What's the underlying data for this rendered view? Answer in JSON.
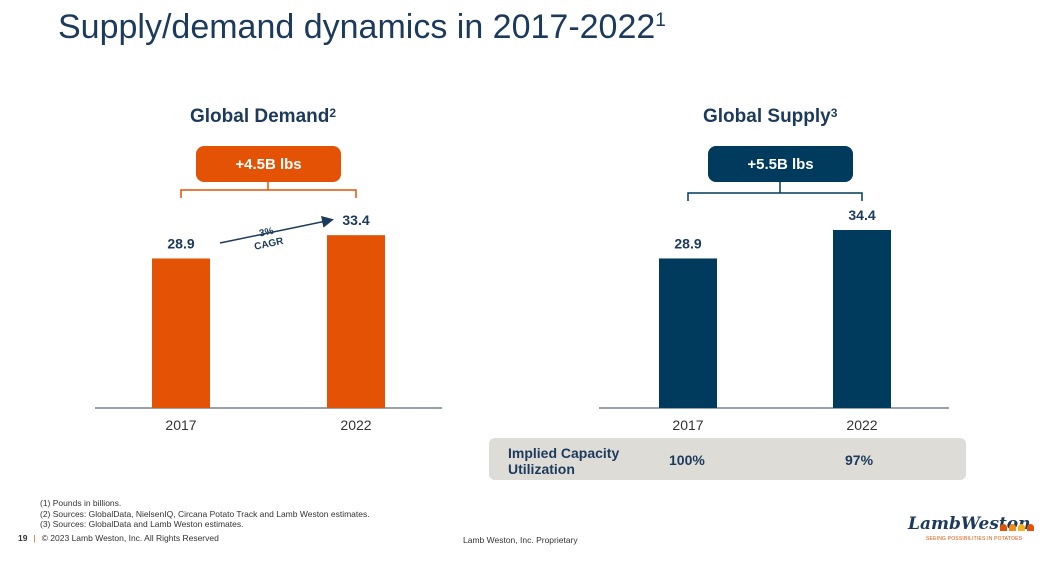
{
  "page": {
    "title": "Supply/demand dynamics in 2017-2022",
    "title_sup": "1",
    "page_number": "19",
    "copyright": "© 2023 Lamb Weston, Inc.  All Rights Reserved",
    "proprietary": "Lamb Weston, Inc. Proprietary"
  },
  "colors": {
    "demand": "#e35205",
    "supply": "#003a5c",
    "capacity_box": "#dedcd6"
  },
  "demand": {
    "title": "Global Demand",
    "title_sup": "2",
    "change": "+4.5B lbs",
    "cagr_label": "3% CAGR"
  },
  "supply": {
    "title": "Global Supply",
    "title_sup": "3",
    "change": "+5.5B lbs"
  },
  "capacity": {
    "label": "Implied Capacity Utilization",
    "values": [
      "100%",
      "97%"
    ]
  },
  "footnotes": [
    "(1) Pounds in billions.",
    "(2) Sources: GlobalData, NielsenIQ, Circana Potato Track and Lamb Weston estimates.",
    "(3) Sources: GlobalData and Lamb Weston estimates."
  ],
  "logo": {
    "name": "LambWeston",
    "tagline": "SEEING POSSIBILITIES IN POTATOES",
    "dot_colors": [
      "#e35205",
      "#f08a1c",
      "#f2b01e",
      "#e35205"
    ]
  },
  "chart_data": [
    {
      "type": "bar",
      "title": "Global Demand",
      "categories": [
        "2017",
        "2022"
      ],
      "values": [
        28.9,
        33.4
      ],
      "value_labels": [
        "28.9",
        "33.4"
      ],
      "ylim": [
        0,
        34.4
      ],
      "annotation": "3% CAGR"
    },
    {
      "type": "bar",
      "title": "Global Supply",
      "categories": [
        "2017",
        "2022"
      ],
      "values": [
        28.9,
        34.4
      ],
      "value_labels": [
        "28.9",
        "34.4"
      ],
      "ylim": [
        0,
        34.4
      ]
    }
  ]
}
